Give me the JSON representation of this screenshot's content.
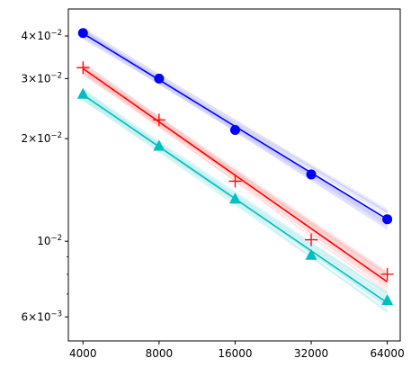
{
  "chart_data": {
    "type": "line",
    "title": "",
    "xlabel": "",
    "ylabel": "",
    "x_scale": "log2",
    "y_scale": "log10",
    "xlim": [
      3500,
      72000
    ],
    "ylim": [
      0.0051,
      0.048
    ],
    "grid": false,
    "legend": "none",
    "x": [
      4000,
      8000,
      16000,
      32000,
      64000
    ],
    "x_tick_labels": [
      "4000",
      "8000",
      "16000",
      "32000",
      "64000"
    ],
    "y_major_ticks": [
      {
        "value": 0.006,
        "mantissa": "6",
        "exponent": "−3"
      },
      {
        "value": 0.01,
        "mantissa": "",
        "exponent": "−2"
      },
      {
        "value": 0.02,
        "mantissa": "2",
        "exponent": "−2"
      },
      {
        "value": 0.03,
        "mantissa": "3",
        "exponent": "−2"
      },
      {
        "value": 0.04,
        "mantissa": "4",
        "exponent": "−2"
      }
    ],
    "y_minor_ticks": [
      0.007,
      0.008,
      0.009
    ],
    "series": [
      {
        "marker": "circle",
        "color": "#0000ff",
        "band_color": "#c8c8ff",
        "values": [
          0.0408,
          0.03,
          0.0212,
          0.0157,
          0.0116
        ],
        "fit_start": 0.0407,
        "fit_end": 0.0116
      },
      {
        "marker": "plus",
        "color": "#ff0000",
        "band_color": "#ffc4c4",
        "values": [
          0.0323,
          0.0227,
          0.015,
          0.0101,
          0.008
        ],
        "fit_start": 0.0321,
        "fit_end": 0.0076
      },
      {
        "marker": "triangle",
        "color": "#00bfbf",
        "band_color": "#bfeeee",
        "values": [
          0.027,
          0.019,
          0.0133,
          0.0091,
          0.0067
        ],
        "fit_start": 0.0269,
        "fit_end": 0.0066
      }
    ]
  }
}
